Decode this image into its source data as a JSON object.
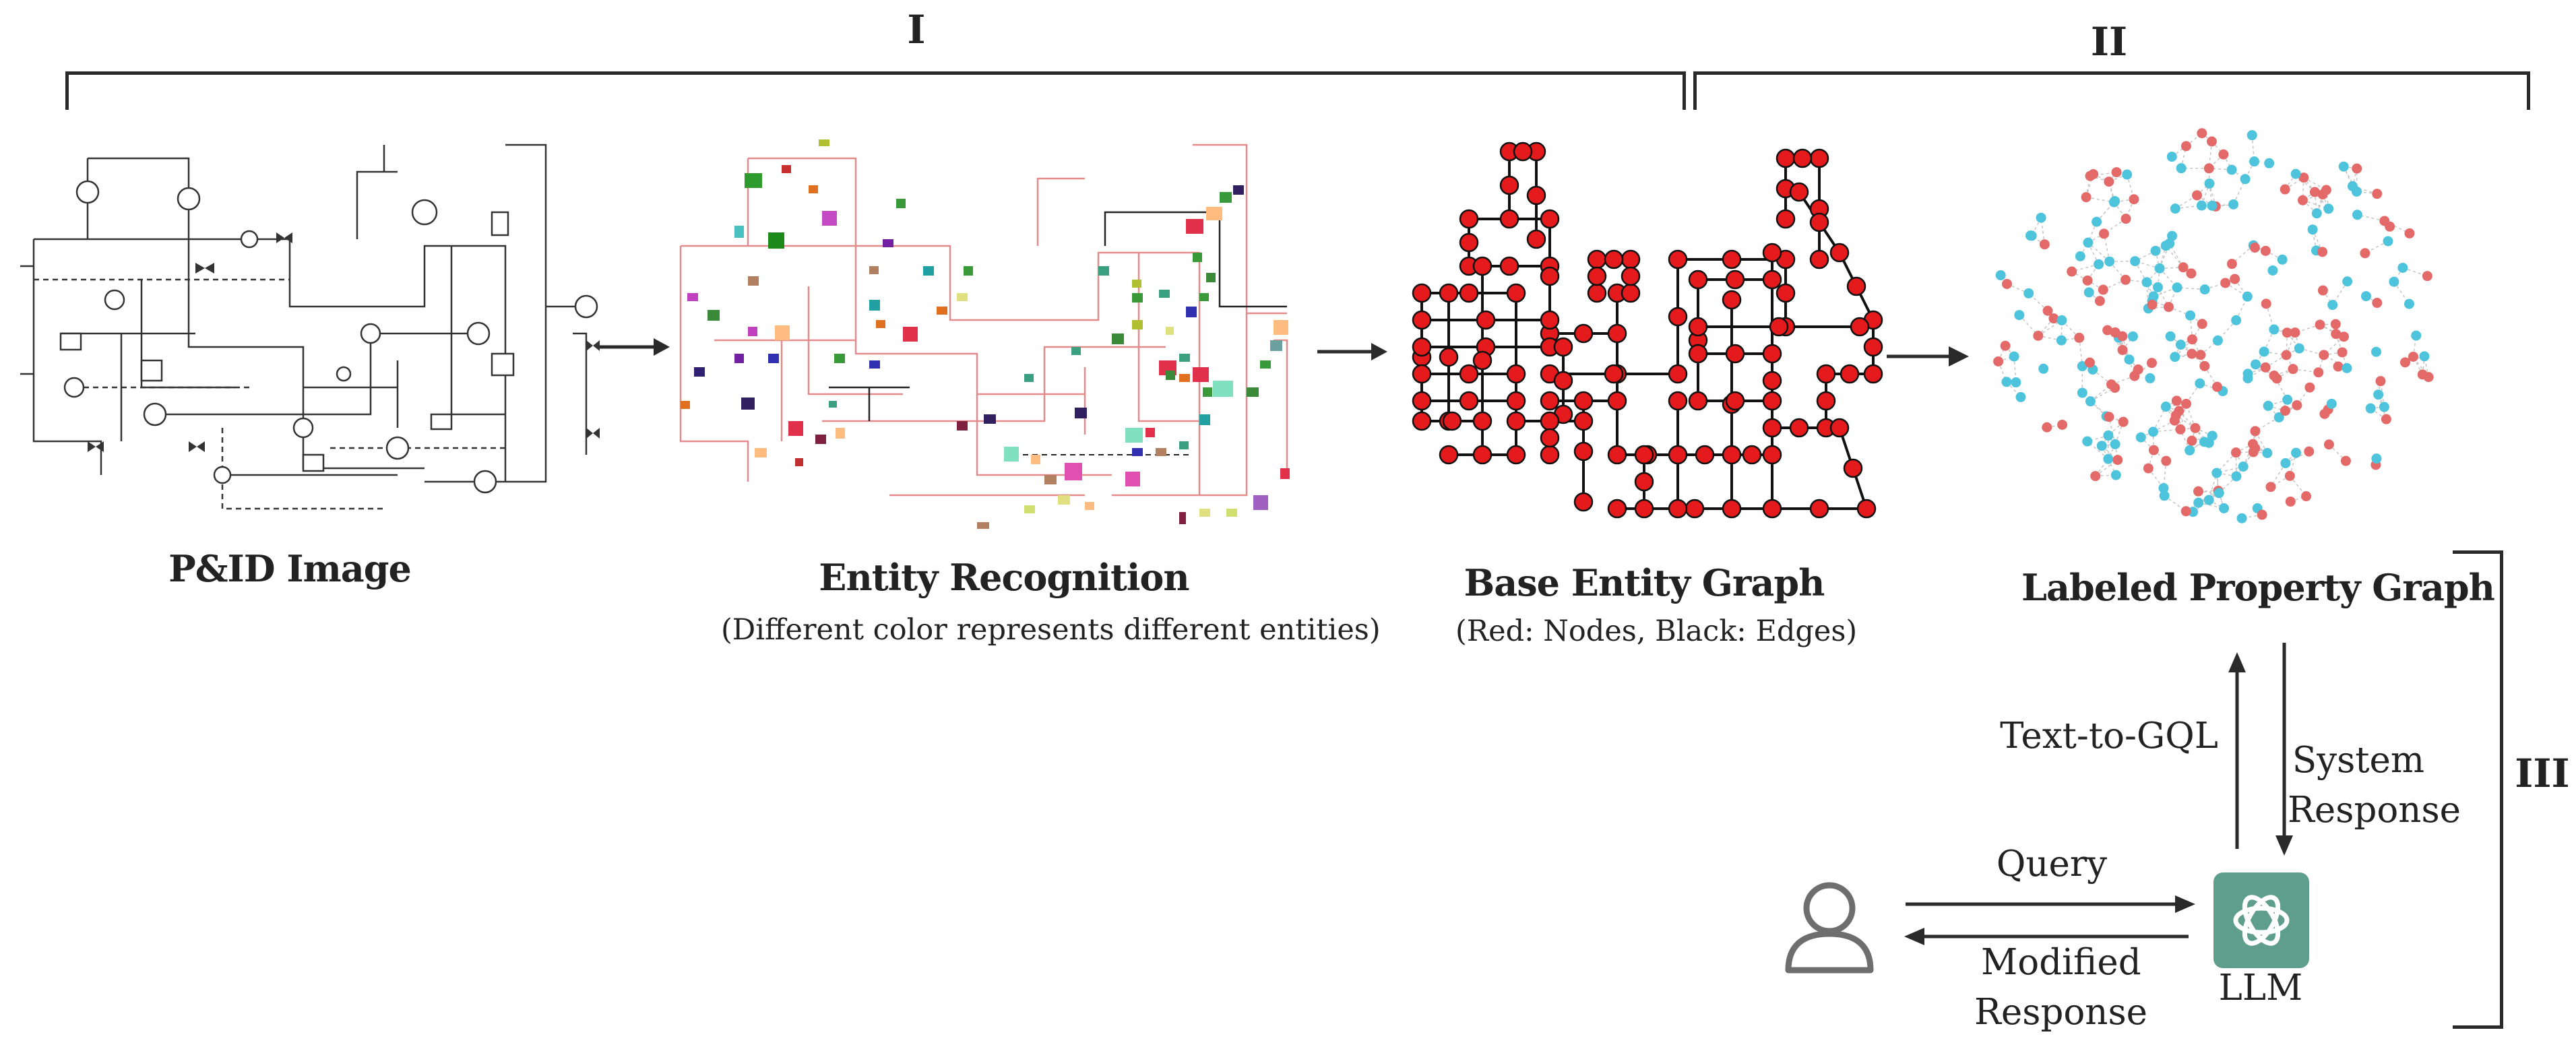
{
  "sections": {
    "one": "I",
    "two": "II",
    "three": "III"
  },
  "stages": {
    "pid": {
      "title": "P&ID Image"
    },
    "recognition": {
      "title": "Entity Recognition",
      "subtitle": "(Different color represents different entities)"
    },
    "base_graph": {
      "title": "Base Entity Graph",
      "subtitle": "(Red: Nodes, Black: Edges)"
    },
    "property_graph": {
      "title": "Labeled Property Graph"
    }
  },
  "interaction": {
    "text_to_gql": "Text-to-GQL",
    "system_response_1": "System",
    "system_response_2": "Response",
    "query": "Query",
    "modified_response_1": "Modified",
    "modified_response_2": "Response",
    "llm": "LLM"
  },
  "colors": {
    "ink": "#2a2a2a",
    "node_red": "#e41a1c",
    "graph_red": "#e46a6a",
    "graph_blue": "#4ec3dc",
    "llm_green": "#5f9e8c",
    "user_gray": "#6e6e6e"
  }
}
